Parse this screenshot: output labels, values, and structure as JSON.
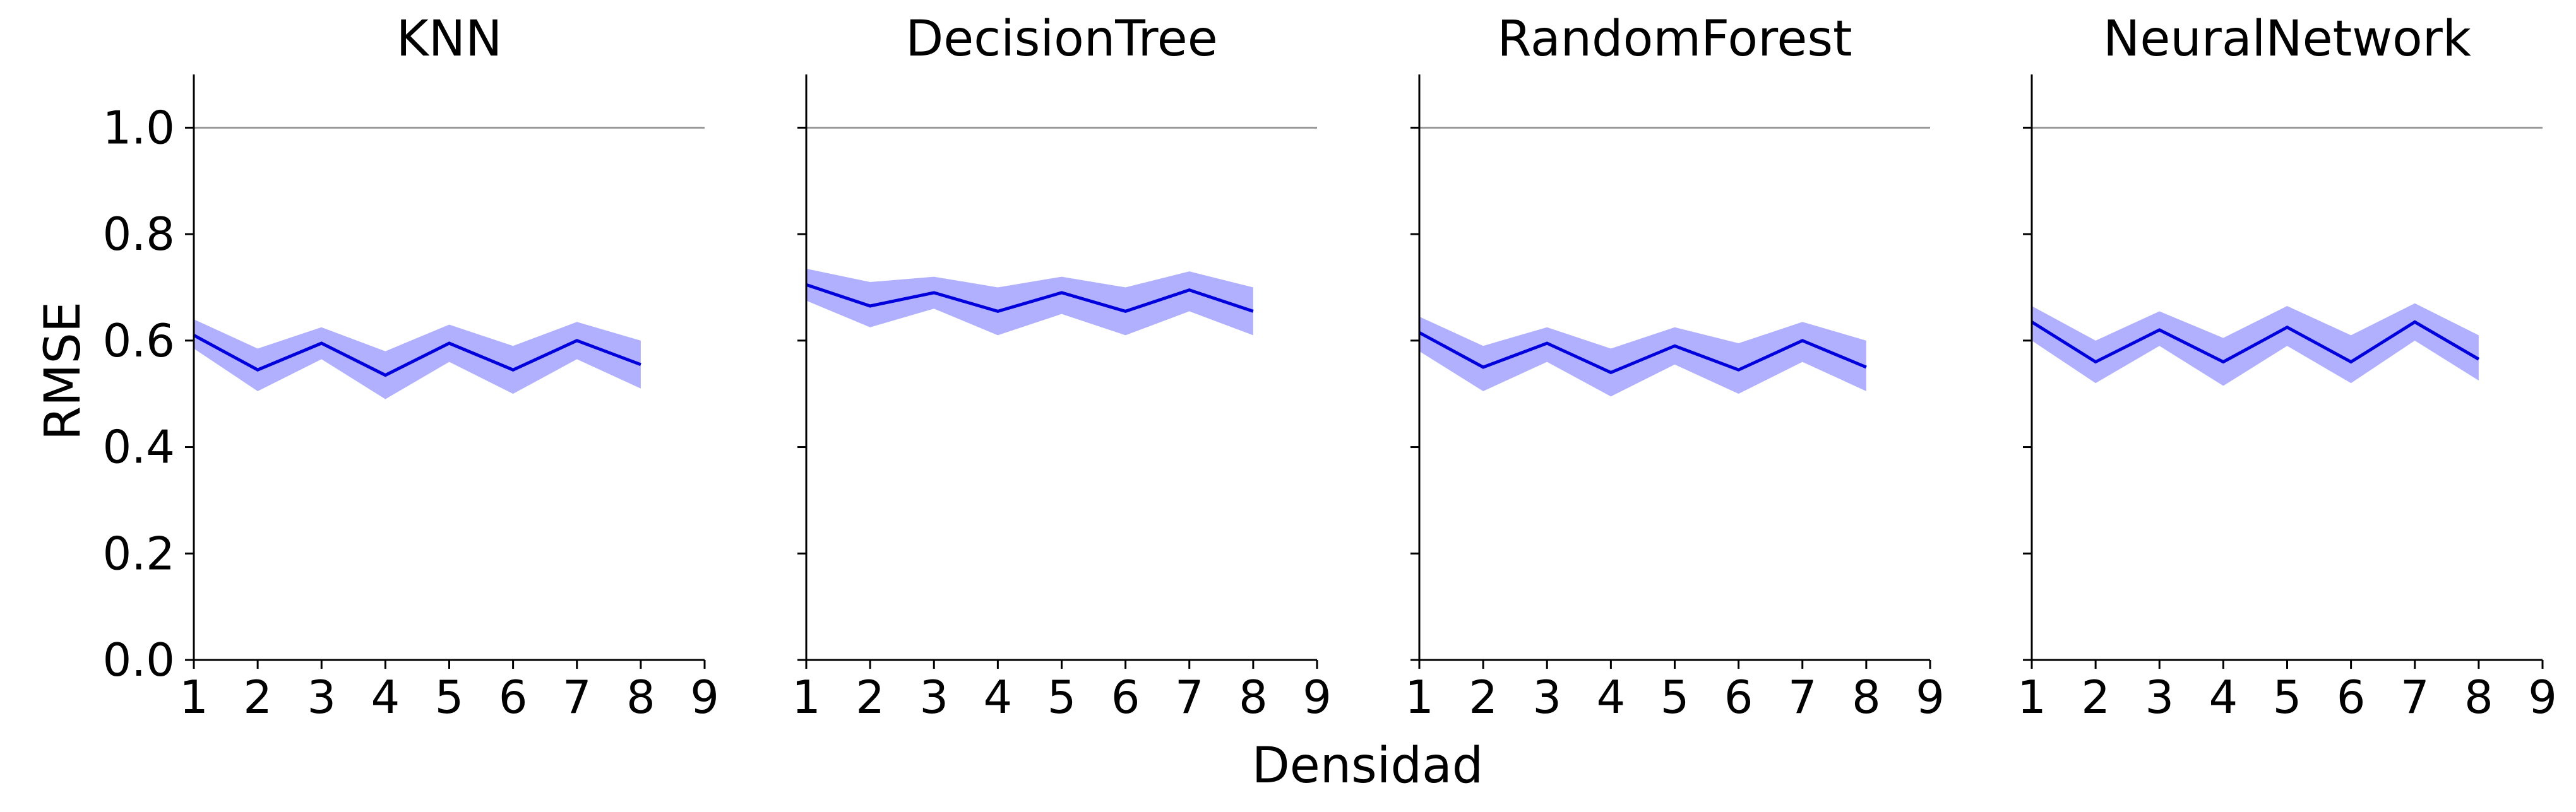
{
  "chart_data": {
    "type": "line",
    "xlabel": "Densidad",
    "ylabel": "RMSE",
    "xlim": [
      1,
      9
    ],
    "ylim": [
      0,
      1.1
    ],
    "x_ticks": [
      1,
      2,
      3,
      4,
      5,
      6,
      7,
      8,
      9
    ],
    "y_ticks": [
      "0.0",
      "0.2",
      "0.4",
      "0.6",
      "0.8",
      "1.0"
    ],
    "reference_line": 1.0,
    "grid": false,
    "line_color": "#0000dd",
    "band_color": "#b0b0ff",
    "reference_color": "#999999",
    "x": [
      1,
      2,
      3,
      4,
      5,
      6,
      7,
      8
    ],
    "panels": [
      {
        "title": "KNN",
        "values": [
          0.61,
          0.545,
          0.595,
          0.535,
          0.595,
          0.545,
          0.6,
          0.555
        ],
        "lower": [
          0.585,
          0.505,
          0.565,
          0.49,
          0.56,
          0.5,
          0.565,
          0.51
        ],
        "upper": [
          0.64,
          0.585,
          0.625,
          0.58,
          0.63,
          0.59,
          0.635,
          0.6
        ]
      },
      {
        "title": "DecisionTree",
        "values": [
          0.705,
          0.665,
          0.69,
          0.655,
          0.69,
          0.655,
          0.695,
          0.655
        ],
        "lower": [
          0.675,
          0.625,
          0.66,
          0.61,
          0.65,
          0.61,
          0.655,
          0.61
        ],
        "upper": [
          0.735,
          0.71,
          0.72,
          0.7,
          0.72,
          0.7,
          0.73,
          0.7
        ]
      },
      {
        "title": "RandomForest",
        "values": [
          0.615,
          0.55,
          0.595,
          0.54,
          0.59,
          0.545,
          0.6,
          0.55
        ],
        "lower": [
          0.58,
          0.505,
          0.56,
          0.495,
          0.555,
          0.5,
          0.56,
          0.505
        ],
        "upper": [
          0.645,
          0.59,
          0.625,
          0.585,
          0.625,
          0.595,
          0.635,
          0.6
        ]
      },
      {
        "title": "NeuralNetwork",
        "values": [
          0.635,
          0.56,
          0.62,
          0.56,
          0.625,
          0.56,
          0.635,
          0.565
        ],
        "lower": [
          0.6,
          0.52,
          0.59,
          0.515,
          0.59,
          0.52,
          0.6,
          0.525
        ],
        "upper": [
          0.665,
          0.6,
          0.655,
          0.605,
          0.665,
          0.61,
          0.67,
          0.61
        ]
      }
    ]
  }
}
